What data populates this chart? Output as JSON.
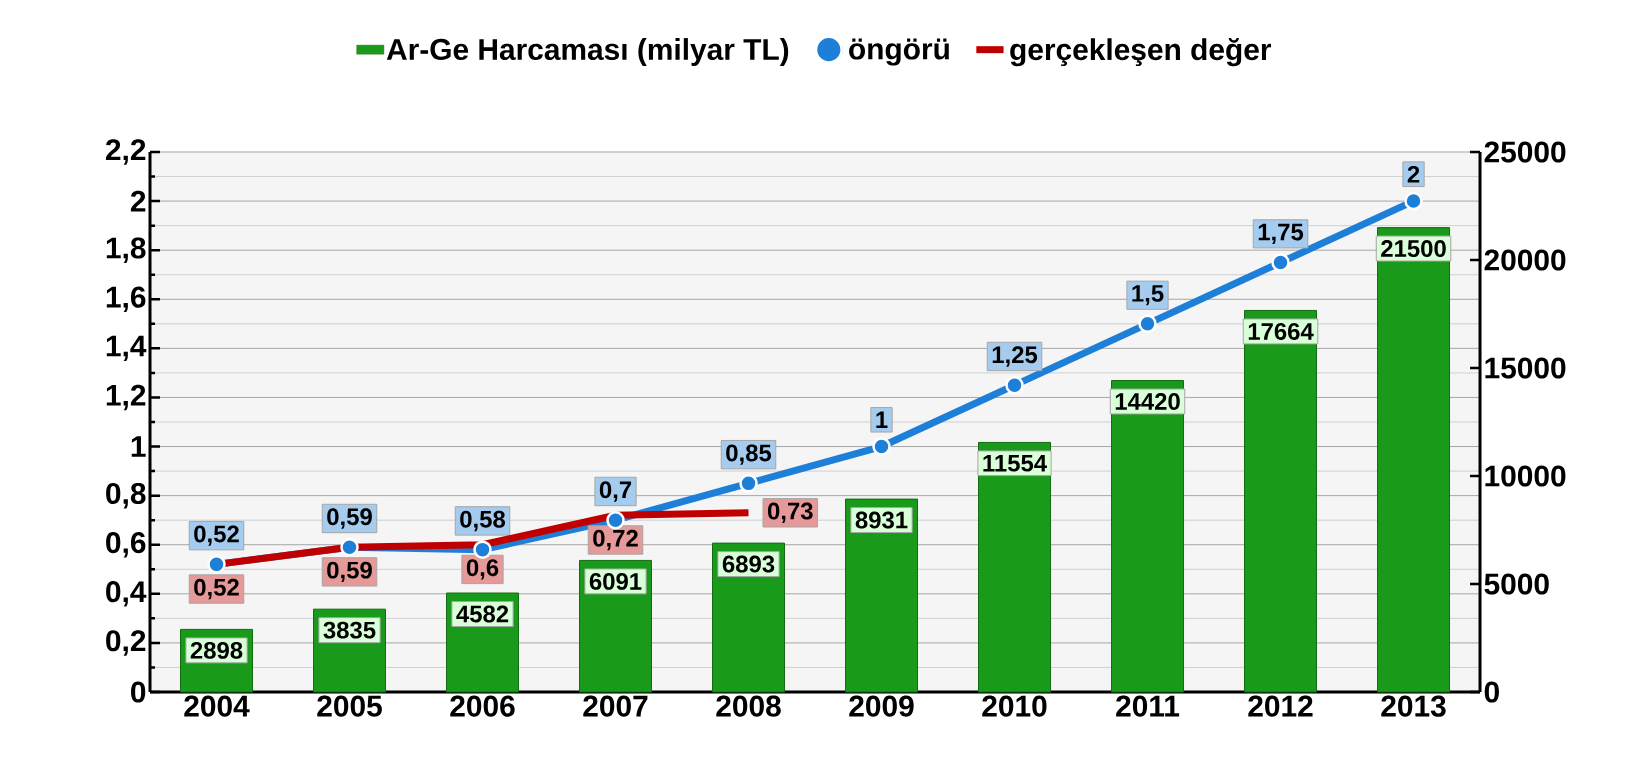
{
  "chart_data": {
    "type": "bar",
    "categories": [
      "2004",
      "2005",
      "2006",
      "2007",
      "2008",
      "2009",
      "2010",
      "2011",
      "2012",
      "2013"
    ],
    "series": [
      {
        "name": "Ar-Ge Harcaması (milyar TL)",
        "axis": "y2",
        "color": "#1a9a1a",
        "values": [
          2898,
          3835,
          4582,
          6091,
          6893,
          8931,
          11554,
          14420,
          17664,
          21500
        ],
        "value_labels": [
          "2898",
          "3835",
          "4582",
          "6091",
          "6893",
          "8931",
          "11554",
          "14420",
          "17664",
          "21500"
        ]
      },
      {
        "name": "öngörü",
        "type": "line",
        "color": "#1e7fd8",
        "marker": "circle",
        "values": [
          0.52,
          0.59,
          0.58,
          0.7,
          0.85,
          1,
          1.25,
          1.5,
          1.75,
          2
        ],
        "value_labels": [
          "0,52",
          "0,59",
          "0,58",
          "0,7",
          "0,85",
          "1",
          "1,25",
          "1,5",
          "1,75",
          "2"
        ]
      },
      {
        "name": "gerçekleşen değer",
        "type": "line",
        "color": "#c00000",
        "values": [
          0.52,
          0.59,
          0.6,
          0.72,
          0.73,
          null,
          null,
          null,
          null,
          null
        ],
        "value_labels": [
          "0,52",
          "0,59",
          "0,6",
          "0,72",
          "0,73",
          null,
          null,
          null,
          null,
          null
        ]
      }
    ],
    "ylim": [
      0,
      2.2
    ],
    "yticks": [
      0,
      {
        "value": 0.2,
        "label": "0,2"
      },
      {
        "value": 0.4,
        "label": "0,4"
      },
      {
        "value": 0.6,
        "label": "0,6"
      },
      {
        "value": 0.8,
        "label": "0,8"
      },
      1,
      {
        "value": 1.2,
        "label": "1,2"
      },
      {
        "value": 1.4,
        "label": "1,4"
      },
      {
        "value": 1.6,
        "label": "1,6"
      },
      {
        "value": 1.8,
        "label": "1,8"
      },
      2,
      {
        "value": 2.2,
        "label": "2,2"
      }
    ],
    "y2lim": [
      0,
      25000
    ],
    "y2ticks": [
      0,
      5000,
      10000,
      15000,
      20000,
      25000
    ],
    "grid": "y",
    "legend": "top"
  }
}
